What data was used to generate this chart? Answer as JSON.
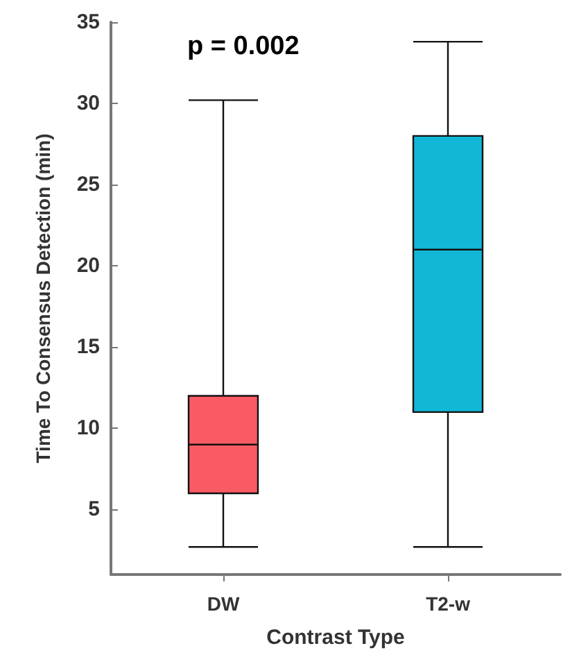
{
  "chart_data": {
    "type": "box",
    "xlabel": "Contrast Type",
    "ylabel": "Time To Consensus Detection (min)",
    "categories": [
      "DW",
      "T2-w"
    ],
    "boxes": [
      {
        "low": 2.7,
        "q1": 6,
        "median": 9,
        "q3": 12,
        "high": 30.2
      },
      {
        "low": 2.7,
        "q1": 11,
        "median": 21,
        "q3": 28,
        "high": 33.8
      }
    ],
    "colors": [
      "#f95a64",
      "#12b7d6"
    ],
    "ylim": [
      1,
      35
    ],
    "yticks": [
      5,
      10,
      15,
      20,
      25,
      30,
      35
    ],
    "annotations": [
      "p = 0.002"
    ]
  }
}
